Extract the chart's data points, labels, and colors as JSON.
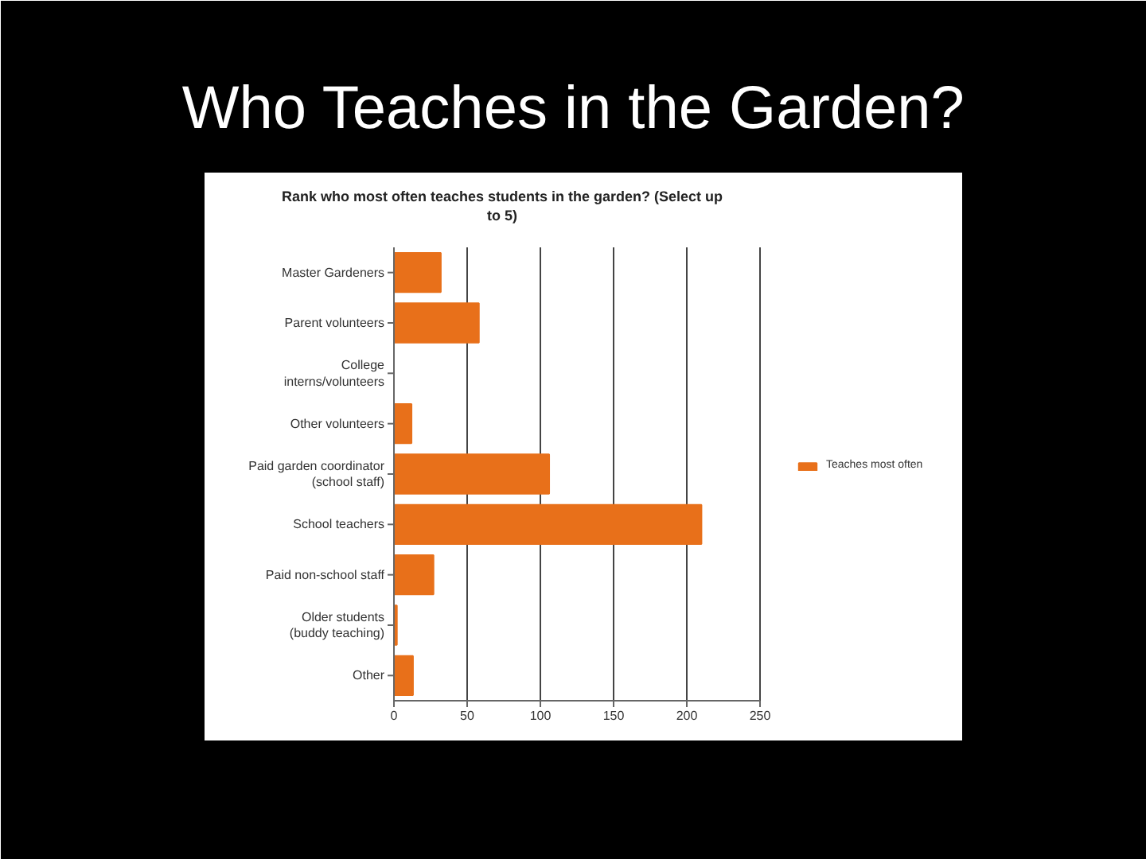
{
  "chart_data": {
    "type": "bar",
    "orientation": "horizontal",
    "title": "Who Teaches in the Garden?",
    "subtitle": "Rank who most often teaches students in the garden? (Select up to 5)",
    "categories": [
      "Master Gardeners",
      "Parent volunteers",
      "College\ninterns/volunteers",
      "Other volunteers",
      "Paid garden coordinator\n(school staff)",
      "School teachers",
      "Paid non-school staff",
      "Older students\n(buddy teaching)",
      "Other"
    ],
    "series": [
      {
        "name": "Teaches most often",
        "color": "#e8701a",
        "values": [
          32,
          58,
          0,
          12,
          106,
          210,
          27,
          2,
          13
        ]
      }
    ],
    "xlim": [
      0,
      250
    ],
    "xticks": [
      0,
      50,
      100,
      150,
      200,
      250
    ],
    "grid": "x",
    "legend": "right"
  }
}
